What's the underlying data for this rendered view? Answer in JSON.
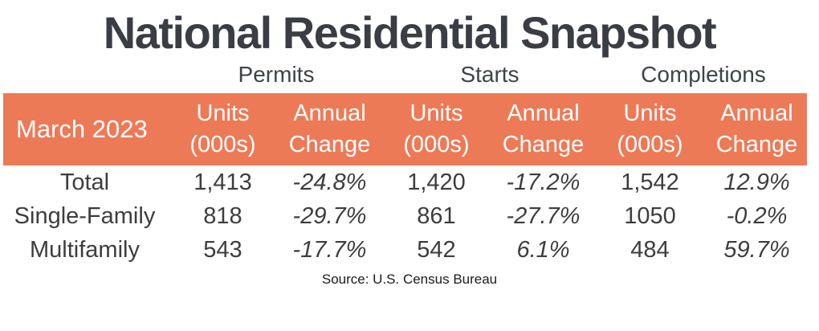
{
  "chart_data": {
    "type": "table",
    "title": "National Residential Snapshot",
    "period_label": "March 2023",
    "column_groups": [
      "Permits",
      "Starts",
      "Completions"
    ],
    "sub_columns": [
      "Units (000s)",
      "Annual Change"
    ],
    "rows": [
      {
        "label": "Total",
        "values": [
          "1,413",
          "-24.8%",
          "1,420",
          "-17.2%",
          "1,542",
          "12.9%"
        ]
      },
      {
        "label": "Single-Family",
        "values": [
          "818",
          "-29.7%",
          "861",
          "-27.7%",
          "1050",
          "-0.2%"
        ]
      },
      {
        "label": "Multifamily",
        "values": [
          "543",
          "-17.7%",
          "542",
          "6.1%",
          "484",
          "59.7%"
        ]
      }
    ],
    "source": "Source: U.S. Census Bureau"
  },
  "subheader": {
    "units_line1": "Units",
    "units_line2": "(000s)",
    "change_line1": "Annual",
    "change_line2": "Change"
  },
  "colors": {
    "accent_orange": "#ED7A57",
    "header_text": "#FFFFFF",
    "title_text": "#3A3D43",
    "body_text": "#3D3D3D",
    "source_text": "#1A1A1A"
  }
}
